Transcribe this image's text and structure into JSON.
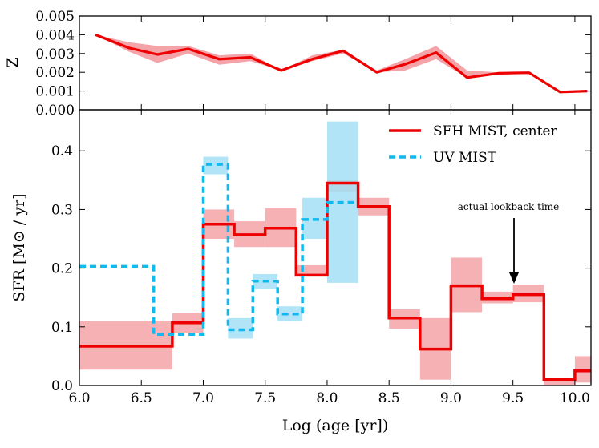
{
  "colors": {
    "sfh": "#ee0000",
    "sfh_band": "#f4a3a8",
    "uv": "#11b9ee",
    "uv_band": "#a3dff5"
  },
  "chart_data": [
    {
      "type": "line",
      "panel": "top",
      "ylabel": "Z",
      "xlim": [
        6.0,
        10.13
      ],
      "ylim": [
        0.0,
        0.005
      ],
      "yticks": [
        "0.000",
        "0.001",
        "0.002",
        "0.003",
        "0.004",
        "0.005"
      ],
      "series": [
        {
          "name": "Z",
          "x": [
            6.13,
            6.4,
            6.63,
            6.88,
            7.13,
            7.38,
            7.63,
            7.88,
            8.13,
            8.4,
            8.63,
            8.88,
            9.13,
            9.38,
            9.63,
            9.88,
            10.1
          ],
          "values": [
            0.004,
            0.0033,
            0.00295,
            0.00325,
            0.0027,
            0.0028,
            0.0021,
            0.0027,
            0.00315,
            0.002,
            0.00243,
            0.00305,
            0.00172,
            0.00195,
            0.00198,
            0.00095,
            0.001
          ],
          "lower": [
            0.004,
            0.0031,
            0.0025,
            0.003,
            0.0024,
            0.0026,
            0.0021,
            0.0026,
            0.003,
            0.002,
            0.0021,
            0.0027,
            0.0017,
            0.0019,
            0.00195,
            0.00095,
            0.001
          ],
          "upper": [
            0.004,
            0.0036,
            0.0034,
            0.0034,
            0.0029,
            0.003,
            0.0021,
            0.0029,
            0.0032,
            0.0021,
            0.0027,
            0.0034,
            0.0021,
            0.002,
            0.002,
            0.00095,
            0.001
          ]
        }
      ]
    },
    {
      "type": "step",
      "panel": "bottom",
      "xlabel": "Log (age [yr])",
      "ylabel": "SFR [M⊙ / yr]",
      "xlim": [
        6.0,
        10.13
      ],
      "ylim": [
        0.0,
        0.47
      ],
      "xticks": [
        "6.0",
        "6.5",
        "7.0",
        "7.5",
        "8.0",
        "8.5",
        "9.0",
        "9.5",
        "10.0"
      ],
      "yticks": [
        "0.0",
        "0.1",
        "0.2",
        "0.3",
        "0.4"
      ],
      "legend": {
        "position": "top-right",
        "entries": [
          "SFH MIST, center",
          "UV MIST"
        ]
      },
      "series": [
        {
          "name": "SFH MIST, center",
          "bins": [
            [
              6.0,
              6.75
            ],
            [
              6.75,
              7.0
            ],
            [
              7.0,
              7.25
            ],
            [
              7.25,
              7.5
            ],
            [
              7.5,
              7.75
            ],
            [
              7.75,
              8.0
            ],
            [
              8.0,
              8.25
            ],
            [
              8.25,
              8.5
            ],
            [
              8.5,
              8.75
            ],
            [
              8.75,
              9.0
            ],
            [
              9.0,
              9.25
            ],
            [
              9.25,
              9.5
            ],
            [
              9.5,
              9.75
            ],
            [
              9.75,
              10.0
            ],
            [
              10.0,
              10.13
            ]
          ],
          "values": [
            0.067,
            0.107,
            0.275,
            0.257,
            0.268,
            0.188,
            0.345,
            0.305,
            0.115,
            0.062,
            0.17,
            0.148,
            0.155,
            0.01,
            0.025
          ],
          "lower": [
            0.027,
            0.09,
            0.25,
            0.236,
            0.236,
            0.188,
            0.33,
            0.29,
            0.097,
            0.01,
            0.125,
            0.14,
            0.142,
            0.0,
            0.005
          ],
          "upper": [
            0.11,
            0.123,
            0.3,
            0.28,
            0.302,
            0.205,
            0.35,
            0.32,
            0.13,
            0.115,
            0.218,
            0.16,
            0.172,
            0.012,
            0.05
          ]
        },
        {
          "name": "UV MIST",
          "bins": [
            [
              6.0,
              6.6
            ],
            [
              6.6,
              7.0
            ],
            [
              7.0,
              7.2
            ],
            [
              7.2,
              7.4
            ],
            [
              7.4,
              7.6
            ],
            [
              7.6,
              7.8
            ],
            [
              7.8,
              8.0
            ],
            [
              8.0,
              8.25
            ]
          ],
          "values": [
            0.203,
            0.087,
            0.377,
            0.095,
            0.178,
            0.122,
            0.283,
            0.312
          ],
          "lower": [
            0.203,
            0.087,
            0.36,
            0.08,
            0.165,
            0.11,
            0.25,
            0.175
          ],
          "upper": [
            0.203,
            0.087,
            0.39,
            0.115,
            0.19,
            0.135,
            0.32,
            0.45
          ]
        }
      ],
      "annotations": [
        {
          "text": "actual lookback time",
          "x": 9.5,
          "y": 0.18,
          "arrow": "down"
        }
      ]
    }
  ]
}
